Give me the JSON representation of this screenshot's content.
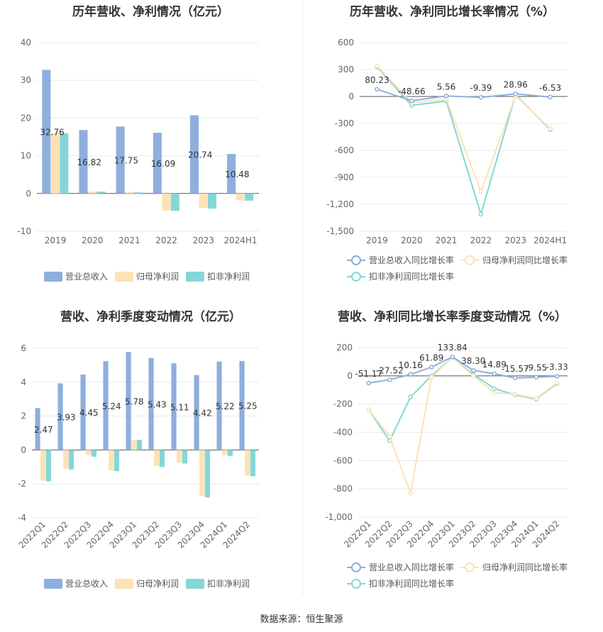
{
  "source_label": "数据来源：恒生聚源",
  "chart_data": [
    {
      "type": "bar",
      "title": "历年营收、净利情况（亿元）",
      "categories": [
        "2019",
        "2020",
        "2021",
        "2022",
        "2023",
        "2024H1"
      ],
      "ylim": [
        -10,
        40
      ],
      "yticks": [
        "40",
        "30",
        "20",
        "10",
        "0",
        "-10"
      ],
      "series": [
        {
          "name": "营业总收入",
          "values": [
            32.76,
            16.82,
            17.75,
            16.09,
            20.74,
            10.48
          ],
          "color": "#8eaedd",
          "labels": [
            "32.76",
            "16.82",
            "17.75",
            "16.09",
            "20.74",
            "10.48"
          ]
        },
        {
          "name": "归母净利润",
          "values": [
            16.0,
            0.5,
            0.4,
            -4.5,
            -3.8,
            -1.8
          ],
          "color": "#fde2b5"
        },
        {
          "name": "扣非净利润",
          "values": [
            16.0,
            0.5,
            0.3,
            -4.6,
            -4.0,
            -1.9
          ],
          "color": "#84d7d6"
        }
      ]
    },
    {
      "type": "line",
      "title": "历年营收、净利同比增长率情况（%）",
      "categories": [
        "2019",
        "2020",
        "2021",
        "2022",
        "2023",
        "2024H1"
      ],
      "ylim": [
        -1500,
        600
      ],
      "yticks": [
        "600",
        "300",
        "0",
        "-300",
        "-600",
        "-900",
        "-1,200",
        "-1,500"
      ],
      "series": [
        {
          "name": "营业总收入同比增长率",
          "values": [
            80.23,
            -48.66,
            5.56,
            -9.39,
            28.96,
            -6.53
          ],
          "color": "#8eaedd",
          "labels": [
            "80.23",
            "-48.66",
            "5.56",
            "-9.39",
            "28.96",
            "-6.53"
          ]
        },
        {
          "name": "归母净利润同比增长率",
          "values": [
            340,
            -70,
            -30,
            -1060,
            10,
            -360
          ],
          "color": "#fde2b5"
        },
        {
          "name": "扣非净利润同比增长率",
          "values": [
            330,
            -100,
            -50,
            -1310,
            20,
            -370
          ],
          "color": "#84d7d6"
        }
      ]
    },
    {
      "type": "bar",
      "title": "营收、净利季度变动情况（亿元）",
      "categories": [
        "2022Q1",
        "2022Q2",
        "2022Q3",
        "2022Q4",
        "2023Q1",
        "2023Q2",
        "2023Q3",
        "2023Q4",
        "2024Q1",
        "2024Q2"
      ],
      "ylim": [
        -4,
        6
      ],
      "yticks": [
        "6",
        "4",
        "2",
        "0",
        "-2",
        "-4"
      ],
      "series": [
        {
          "name": "营业总收入",
          "values": [
            2.47,
            3.93,
            4.45,
            5.24,
            5.78,
            5.43,
            5.11,
            4.42,
            5.22,
            5.25
          ],
          "color": "#8eaedd",
          "labels": [
            "2.47",
            "3.93",
            "4.45",
            "5.24",
            "5.78",
            "5.43",
            "5.11",
            "4.42",
            "5.22",
            "5.25"
          ]
        },
        {
          "name": "归母净利润",
          "values": [
            -1.8,
            -1.1,
            -0.3,
            -1.2,
            0.6,
            -0.95,
            -0.75,
            -2.7,
            -0.3,
            -1.5
          ],
          "color": "#fde2b5"
        },
        {
          "name": "扣非净利润",
          "values": [
            -1.85,
            -1.15,
            -0.4,
            -1.25,
            0.6,
            -1.0,
            -0.8,
            -2.8,
            -0.35,
            -1.55
          ],
          "color": "#84d7d6"
        }
      ]
    },
    {
      "type": "line",
      "title": "营收、净利同比增长率季度变动情况（%）",
      "categories": [
        "2022Q1",
        "2022Q2",
        "2022Q3",
        "2022Q4",
        "2023Q1",
        "2023Q2",
        "2023Q3",
        "2023Q4",
        "2024Q1",
        "2024Q2"
      ],
      "ylim": [
        -1000,
        200
      ],
      "yticks": [
        "200",
        "0",
        "-200",
        "-400",
        "-600",
        "-800",
        "-1,000"
      ],
      "series": [
        {
          "name": "营业总收入同比增长率",
          "values": [
            -51.17,
            -27.52,
            10.16,
            61.89,
            133.84,
            38.3,
            14.89,
            -15.57,
            -9.55,
            -3.33
          ],
          "color": "#8eaedd",
          "labels": [
            "-51.17",
            "-27.52",
            "10.16",
            "61.89",
            "133.84",
            "38.30",
            "14.89",
            "-15.57",
            "-9.55",
            "-3.33"
          ]
        },
        {
          "name": "归母净利润同比增长率",
          "values": [
            -240,
            -430,
            -830,
            -10,
            130,
            0,
            -120,
            -130,
            -160,
            -50
          ],
          "color": "#fde2b5"
        },
        {
          "name": "扣非净利润同比增长率",
          "values": [
            -240,
            -460,
            -150,
            0,
            130,
            10,
            -90,
            -135,
            -165,
            -55
          ],
          "color": "#84d7d6"
        }
      ]
    }
  ]
}
